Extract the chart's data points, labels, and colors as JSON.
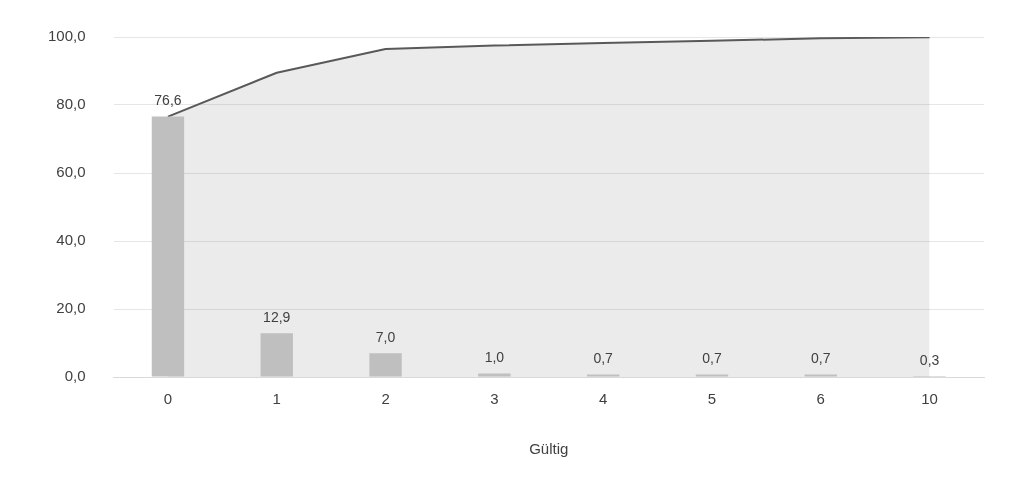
{
  "chart_data": {
    "type": "bar",
    "xlabel": "Gültig",
    "categories": [
      "0",
      "1",
      "2",
      "3",
      "4",
      "5",
      "6",
      "10"
    ],
    "series": [
      {
        "color": "#bfbfbf",
        "values": [
          76.6,
          12.9,
          7.0,
          1.0,
          0.7,
          0.7,
          0.7,
          0.3
        ],
        "value_labels": [
          "76,6",
          "12,9",
          "7,0",
          "1,0",
          "0,7",
          "0,7",
          "0,7",
          "0,3"
        ]
      },
      {
        "type": "area",
        "color": "#595959",
        "values": [
          76.6,
          89.5,
          96.5,
          97.5,
          98.2,
          98.9,
          99.6,
          99.9
        ]
      }
    ],
    "ylim": [
      0,
      100
    ],
    "yticks": [
      {
        "value": 0,
        "label": "0,0"
      },
      {
        "value": 20,
        "label": "20,0"
      },
      {
        "value": 40,
        "label": "40,0"
      },
      {
        "value": 60,
        "label": "60,0"
      },
      {
        "value": 80,
        "label": "80,0"
      },
      {
        "value": 100,
        "label": "100,0"
      }
    ],
    "grid": "y",
    "legend": false
  }
}
